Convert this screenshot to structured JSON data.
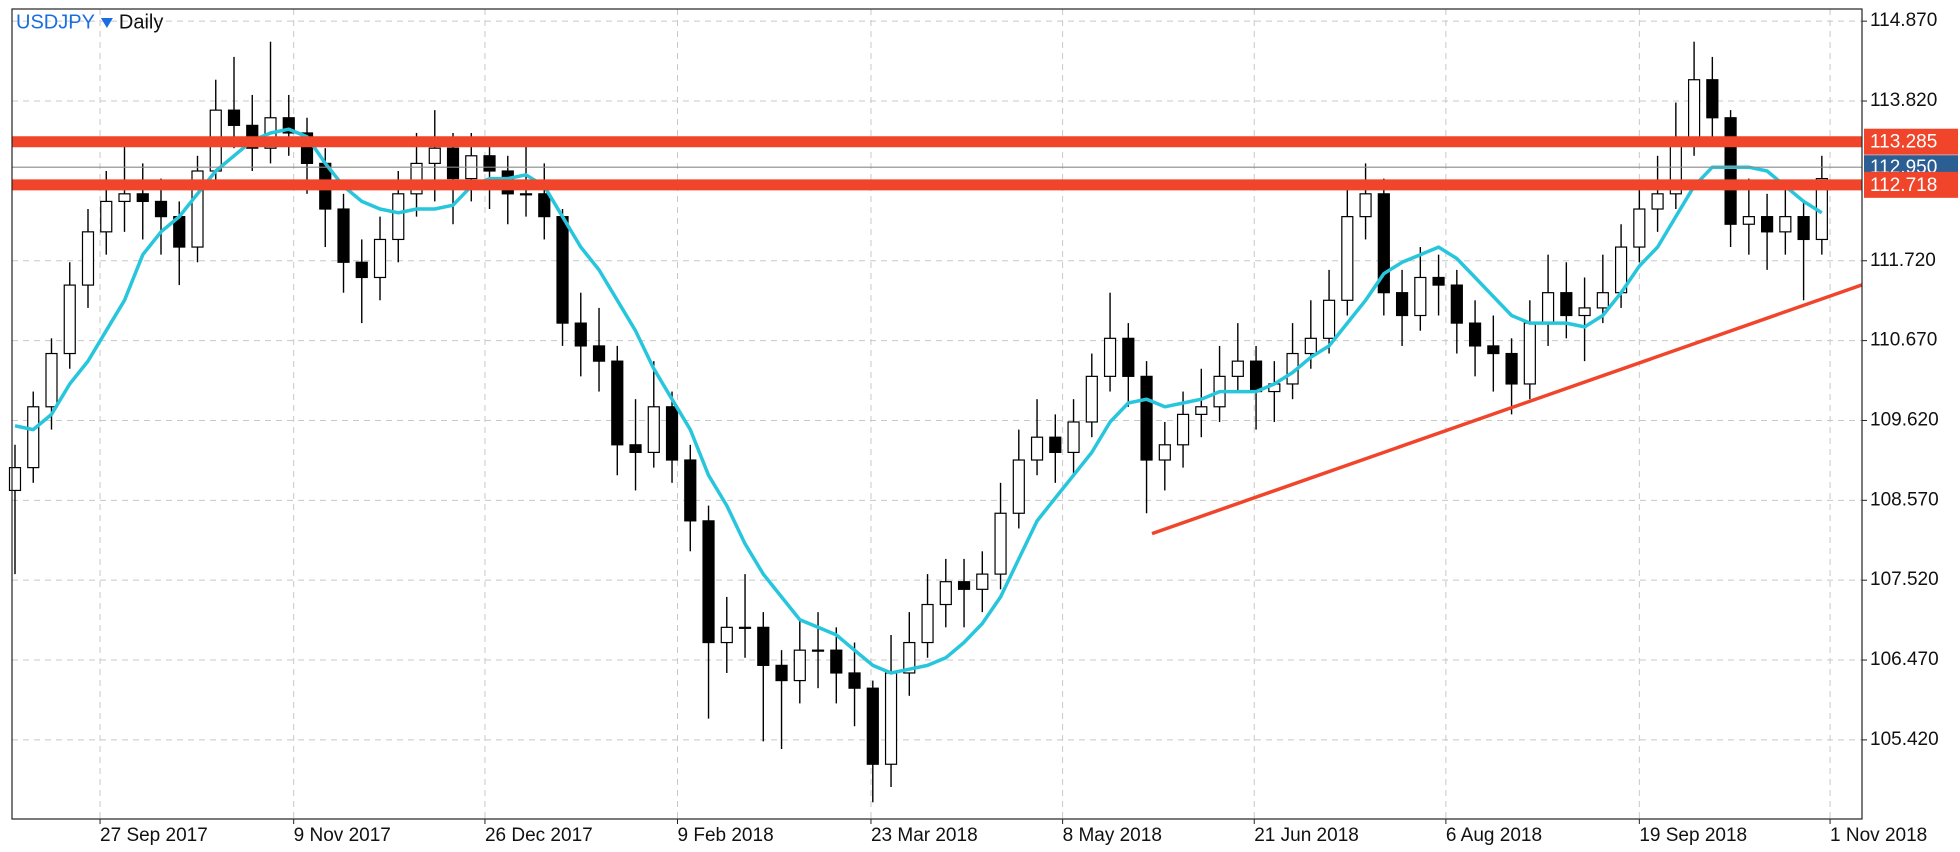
{
  "chart_data": {
    "type": "candlestick",
    "title": "USDJPY",
    "timeframe": "Daily",
    "title_color": "#1a6fe0",
    "xlim": [
      -0.164,
      101.2
    ],
    "ylim": [
      104.38,
      115.03
    ],
    "xticks": [
      {
        "value": 4.66,
        "label": "27 Sep 2017"
      },
      {
        "value": 15.27,
        "label": "9 Nov 2017"
      },
      {
        "value": 25.75,
        "label": "26 Dec 2017"
      },
      {
        "value": 36.3,
        "label": "9 Feb 2018"
      },
      {
        "value": 46.9,
        "label": "23 Mar 2018"
      },
      {
        "value": 57.4,
        "label": "8 May 2018"
      },
      {
        "value": 67.9,
        "label": "21 Jun 2018"
      },
      {
        "value": 78.4,
        "label": "6 Aug 2018"
      },
      {
        "value": 89,
        "label": "19 Sep 2018"
      },
      {
        "value": 99.45,
        "label": "1 Nov 2018"
      }
    ],
    "yticks": [
      {
        "value": 114.87,
        "label": "114.870"
      },
      {
        "value": 113.82,
        "label": "113.820"
      },
      {
        "value": 111.72,
        "label": "111.720"
      },
      {
        "value": 110.67,
        "label": "110.670"
      },
      {
        "value": 109.62,
        "label": "109.620"
      },
      {
        "value": 108.57,
        "label": "108.570"
      },
      {
        "value": 107.52,
        "label": "107.520"
      },
      {
        "value": 106.47,
        "label": "106.470"
      },
      {
        "value": 105.42,
        "label": "105.420"
      }
    ],
    "grid": true,
    "open": [
      108.7,
      109.0,
      109.8,
      110.5,
      111.4,
      112.1,
      112.5,
      112.6,
      112.5,
      112.3,
      111.9,
      112.9,
      113.7,
      113.5,
      113.2,
      113.6,
      113.4,
      113.0,
      112.4,
      111.7,
      111.5,
      112.0,
      112.6,
      113.0,
      113.2,
      112.8,
      113.1,
      112.9,
      112.6,
      112.6,
      112.3,
      110.9,
      110.6,
      110.4,
      109.3,
      109.2,
      109.8,
      109.1,
      108.3,
      106.7,
      106.9,
      106.9,
      106.4,
      106.2,
      106.6,
      106.6,
      106.3,
      106.1,
      105.1,
      106.3,
      106.7,
      107.2,
      107.5,
      107.4,
      107.6,
      108.4,
      109.1,
      109.4,
      109.2,
      109.6,
      110.2,
      110.7,
      110.2,
      109.1,
      109.3,
      109.7,
      109.8,
      110.2,
      110.4,
      110.0,
      110.1,
      110.5,
      110.7,
      111.2,
      112.3,
      112.6,
      111.3,
      111.0,
      111.5,
      111.4,
      110.9,
      110.6,
      110.5,
      110.1,
      110.9,
      111.3,
      111.0,
      111.1,
      111.3,
      111.9,
      112.4,
      112.6,
      113.3,
      114.1,
      113.6,
      112.2,
      112.3,
      112.1,
      112.3,
      112.0
    ],
    "high": [
      109.3,
      110.0,
      110.7,
      111.7,
      112.4,
      112.9,
      113.3,
      113.0,
      112.8,
      112.5,
      113.1,
      114.1,
      114.4,
      113.9,
      114.6,
      113.9,
      113.6,
      113.2,
      112.6,
      112.0,
      112.3,
      112.9,
      113.4,
      113.7,
      113.4,
      113.4,
      113.3,
      113.1,
      113.3,
      113.0,
      112.4,
      111.3,
      111.1,
      110.6,
      109.9,
      110.4,
      110.0,
      109.3,
      108.5,
      107.3,
      107.6,
      107.1,
      106.6,
      107.0,
      107.1,
      106.9,
      106.7,
      106.2,
      106.8,
      107.1,
      107.6,
      107.8,
      107.8,
      107.9,
      108.8,
      109.5,
      109.9,
      109.7,
      109.9,
      110.5,
      111.3,
      110.9,
      110.4,
      109.6,
      110.0,
      110.3,
      110.6,
      110.9,
      110.6,
      110.4,
      110.9,
      111.2,
      111.6,
      112.7,
      113.0,
      112.8,
      111.6,
      111.9,
      111.8,
      111.6,
      111.2,
      111.0,
      110.7,
      111.2,
      111.8,
      111.7,
      111.5,
      111.8,
      112.2,
      112.7,
      113.1,
      113.8,
      114.6,
      114.4,
      113.7,
      112.8,
      112.6,
      112.7,
      112.5,
      113.1
    ],
    "low": [
      107.6,
      108.8,
      109.5,
      110.3,
      111.1,
      111.8,
      112.1,
      112.0,
      111.8,
      111.4,
      111.7,
      112.7,
      113.2,
      112.9,
      113.0,
      113.1,
      112.6,
      111.9,
      111.3,
      110.9,
      111.2,
      111.7,
      112.3,
      112.5,
      112.2,
      112.5,
      112.4,
      112.2,
      112.3,
      112.0,
      110.6,
      110.2,
      110.0,
      108.9,
      108.7,
      109.0,
      108.8,
      107.9,
      105.7,
      106.3,
      106.5,
      105.4,
      105.3,
      105.9,
      106.1,
      105.9,
      105.6,
      104.6,
      104.8,
      106.0,
      106.5,
      106.9,
      106.9,
      107.1,
      107.4,
      108.2,
      108.9,
      108.8,
      108.9,
      109.4,
      110.0,
      109.8,
      108.4,
      108.7,
      109.0,
      109.4,
      109.6,
      110.0,
      109.5,
      109.6,
      109.9,
      110.3,
      110.5,
      111.0,
      112.0,
      111.0,
      110.6,
      110.8,
      111.0,
      110.5,
      110.2,
      110.0,
      109.7,
      109.9,
      110.6,
      110.7,
      110.4,
      110.9,
      111.1,
      111.7,
      112.1,
      112.4,
      113.1,
      113.3,
      111.9,
      111.8,
      111.6,
      111.8,
      111.2,
      111.8
    ],
    "close": [
      109.0,
      109.8,
      110.5,
      111.4,
      112.1,
      112.5,
      112.6,
      112.5,
      112.3,
      111.9,
      112.9,
      113.7,
      113.5,
      113.2,
      113.6,
      113.4,
      113.0,
      112.4,
      111.7,
      111.5,
      112.0,
      112.6,
      113.0,
      113.2,
      112.8,
      113.1,
      112.9,
      112.6,
      112.6,
      112.3,
      110.9,
      110.6,
      110.4,
      109.3,
      109.2,
      109.8,
      109.1,
      108.3,
      106.7,
      106.9,
      106.9,
      106.4,
      106.2,
      106.6,
      106.6,
      106.3,
      106.1,
      105.1,
      106.3,
      106.7,
      107.2,
      107.5,
      107.4,
      107.6,
      108.4,
      109.1,
      109.4,
      109.2,
      109.6,
      110.2,
      110.7,
      110.2,
      109.1,
      109.3,
      109.7,
      109.8,
      110.2,
      110.4,
      110.0,
      110.1,
      110.5,
      110.7,
      111.2,
      112.3,
      112.6,
      111.3,
      111.0,
      111.5,
      111.4,
      110.9,
      110.6,
      110.5,
      110.1,
      110.9,
      111.3,
      111.0,
      111.1,
      111.3,
      111.9,
      112.4,
      112.6,
      113.3,
      114.1,
      113.6,
      112.2,
      112.3,
      112.1,
      112.3,
      112.0,
      112.8
    ],
    "up_color": "#ffffff",
    "down_color": "#000000",
    "ma": {
      "color": "#27c6dc",
      "values": [
        109.55,
        109.5,
        109.7,
        110.1,
        110.4,
        110.8,
        111.2,
        111.8,
        112.1,
        112.3,
        112.6,
        112.9,
        113.1,
        113.3,
        113.4,
        113.45,
        113.35,
        113.0,
        112.7,
        112.5,
        112.4,
        112.35,
        112.4,
        112.4,
        112.45,
        112.7,
        112.8,
        112.8,
        112.85,
        112.7,
        112.3,
        111.9,
        111.6,
        111.2,
        110.8,
        110.3,
        109.9,
        109.5,
        108.9,
        108.5,
        108.0,
        107.6,
        107.3,
        107.0,
        106.9,
        106.8,
        106.6,
        106.4,
        106.3,
        106.35,
        106.4,
        106.5,
        106.7,
        106.95,
        107.3,
        107.8,
        108.3,
        108.6,
        108.9,
        109.2,
        109.6,
        109.85,
        109.9,
        109.8,
        109.85,
        109.9,
        110.0,
        110.0,
        110.0,
        110.1,
        110.25,
        110.45,
        110.6,
        110.9,
        111.2,
        111.55,
        111.7,
        111.8,
        111.9,
        111.75,
        111.5,
        111.25,
        111.0,
        110.9,
        110.9,
        110.9,
        110.85,
        111.0,
        111.3,
        111.65,
        111.9,
        112.3,
        112.7,
        112.95,
        112.95,
        112.95,
        112.9,
        112.7,
        112.5,
        112.35
      ]
    },
    "levels": [
      {
        "value": 113.285,
        "color": "#f0452a"
      },
      {
        "value": 112.718,
        "color": "#f0452a"
      }
    ],
    "price_line": {
      "value": 112.95,
      "label": "112.950",
      "color": "#2b5f94"
    },
    "trendline": {
      "x": [
        62.3,
        101.2
      ],
      "y": [
        108.133,
        111.403
      ],
      "color": "#f0452a"
    }
  }
}
